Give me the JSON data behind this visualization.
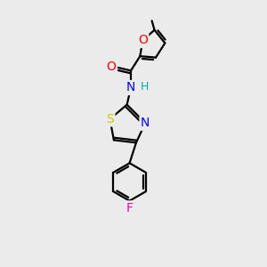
{
  "bg_color": "#ebebeb",
  "atom_colors": {
    "C": "#000000",
    "N": "#0000ff",
    "O": "#ff0000",
    "S": "#cccc00",
    "F": "#ff00aa",
    "H": "#00aaaa"
  },
  "bond_color": "#000000",
  "bond_width": 1.6,
  "font_size": 10,
  "fig_size": [
    3.0,
    3.0
  ],
  "dpi": 100,
  "xlim": [
    0,
    10
  ],
  "ylim": [
    0,
    10
  ]
}
